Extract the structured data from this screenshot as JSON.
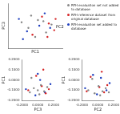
{
  "chart_data": [
    {
      "type": "scatter",
      "xlabel": "PC1",
      "ylabel": "PC3",
      "annotations": [
        "PC2"
      ],
      "xlim": [
        -0.2,
        0.2
      ],
      "ylim": [
        -0.2,
        0.2
      ],
      "xticks": [
        -0.2,
        -0.1,
        0,
        0.1,
        0.2
      ],
      "yticks": [
        -0.2,
        -0.1,
        0,
        0.1,
        0.2
      ],
      "tick_labels": false,
      "grid": false,
      "legend": "right",
      "series": [
        {
          "name": "RFH evaluation set not added to database",
          "color": "#888888",
          "x": [
            -0.05,
            0.02,
            0.08,
            -0.1,
            0.12,
            0.0,
            -0.03,
            0.06
          ],
          "values": [
            -0.02,
            0.05,
            -0.06,
            0.03,
            0.01,
            -0.1,
            0.09,
            0.04
          ]
        },
        {
          "name": "RFH reference dataset from original database",
          "color": "#d62728",
          "x": [
            0.1,
            0.14,
            0.05,
            -0.02,
            0.09,
            0.15
          ],
          "values": [
            0.02,
            -0.04,
            0.08,
            -0.08,
            -0.1,
            0.06
          ]
        },
        {
          "name": "RFH evaluation set added to database",
          "color": "#1f3fbf",
          "x": [
            -0.12,
            -0.06,
            0.03,
            0.11,
            -0.09,
            0.07
          ],
          "values": [
            0.06,
            -0.05,
            0.0,
            -0.02,
            -0.12,
            0.11
          ]
        }
      ]
    },
    {
      "type": "scatter",
      "xlabel": "PC3",
      "ylabel": "PC1",
      "xlim": [
        -0.2,
        0.2
      ],
      "ylim": [
        -0.2,
        0.2
      ],
      "xticks": [
        {
          "value": -0.2,
          "label": "-0.2000"
        },
        {
          "value": 0,
          "label": "0.0000"
        },
        {
          "value": 0.2,
          "label": "0.2000"
        }
      ],
      "yticks": [
        {
          "value": -0.2,
          "label": "-0.2000"
        },
        {
          "value": -0.1,
          "label": "-0.1000"
        },
        {
          "value": 0,
          "label": "0.0000"
        },
        {
          "value": 0.1,
          "label": "0.1000"
        },
        {
          "value": 0.2,
          "label": "0.2000"
        }
      ],
      "grid": false,
      "series": [
        {
          "color": "#888888",
          "x": [
            -0.1,
            -0.05,
            0.0,
            0.04,
            0.08,
            -0.08,
            0.12,
            0.02
          ],
          "values": [
            -0.12,
            -0.08,
            -0.1,
            -0.05,
            -0.11,
            0.02,
            -0.07,
            -0.14
          ]
        },
        {
          "color": "#d62728",
          "x": [
            0.05,
            0.1,
            -0.02,
            0.14,
            0.07,
            -0.12
          ],
          "values": [
            -0.06,
            -0.13,
            0.04,
            -0.09,
            0.1,
            -0.1
          ]
        },
        {
          "color": "#1f3fbf",
          "x": [
            -0.15,
            -0.03,
            0.03,
            0.09,
            0.16,
            0.0
          ],
          "values": [
            -0.09,
            -0.15,
            0.0,
            -0.12,
            -0.04,
            0.06
          ]
        }
      ]
    },
    {
      "type": "scatter",
      "xlabel": "PC2",
      "ylabel": "PC1",
      "xlim": [
        -0.2,
        0.2
      ],
      "ylim": [
        -0.2,
        0.2
      ],
      "xticks": [
        {
          "value": -0.2,
          "label": "-0.2000"
        },
        {
          "value": 0,
          "label": "0.0000"
        },
        {
          "value": 0.2,
          "label": "0.2000"
        }
      ],
      "yticks": [
        {
          "value": -0.2,
          "label": "-0.2000"
        },
        {
          "value": -0.1,
          "label": "-0.1000"
        },
        {
          "value": 0,
          "label": "0.0000"
        },
        {
          "value": 0.1,
          "label": "0.1000"
        },
        {
          "value": 0.2,
          "label": "0.2000"
        }
      ],
      "grid": false,
      "series": [
        {
          "color": "#888888",
          "x": [
            -0.12,
            -0.04,
            0.01,
            0.06,
            0.1,
            -0.07,
            0.14,
            0.03
          ],
          "values": [
            -0.1,
            -0.13,
            -0.06,
            -0.11,
            -0.08,
            0.01,
            -0.12,
            -0.15
          ]
        },
        {
          "color": "#d62728",
          "x": [
            0.02,
            0.08,
            -0.09,
            0.12,
            0.05,
            -0.14
          ],
          "values": [
            -0.07,
            -0.12,
            0.03,
            -0.05,
            0.08,
            -0.11
          ]
        },
        {
          "color": "#1f3fbf",
          "x": [
            -0.16,
            -0.01,
            0.04,
            0.11,
            0.15,
            -0.06
          ],
          "values": [
            -0.08,
            -0.14,
            0.02,
            -0.1,
            -0.03,
            0.05
          ]
        }
      ]
    }
  ]
}
